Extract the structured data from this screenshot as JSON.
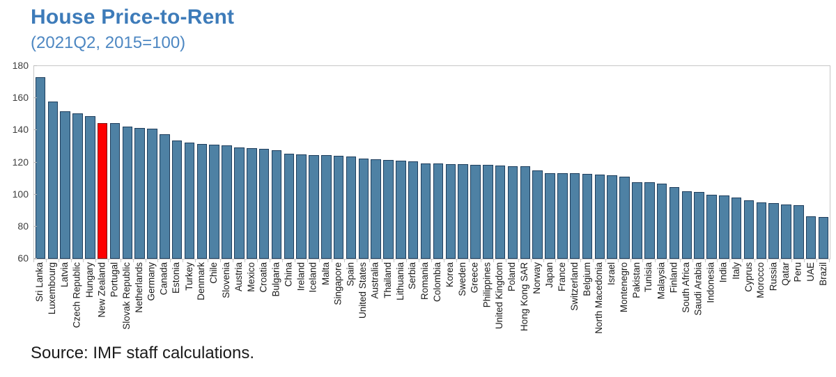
{
  "header": {
    "title": "House Price-to-Rent",
    "subtitle": "(2021Q2, 2015=100)"
  },
  "source": "Source: IMF staff calculations.",
  "chart_data": {
    "type": "bar",
    "title": "House Price-to-Rent",
    "subtitle": "(2021Q2, 2015=100)",
    "xlabel": "",
    "ylabel": "",
    "ylim": [
      60,
      180
    ],
    "yticks": [
      180,
      160,
      140,
      120,
      100,
      80,
      60
    ],
    "grid": false,
    "legend": "none",
    "bar_color": "#4e81a4",
    "bar_border_color": "#1e3d5c",
    "highlight": {
      "category": "New Zealand",
      "index": 5,
      "color": "#fe0000",
      "border_color": "#7e0f0f"
    },
    "categories": [
      "Sri Lanka",
      "Luxembourg",
      "Latvia",
      "Czech Republic",
      "Hungary",
      "New Zealand",
      "Portugal",
      "Slovak Republic",
      "Netherlands",
      "Germany",
      "Canada",
      "Estonia",
      "Turkey",
      "Denmark",
      "Chile",
      "Slovenia",
      "Austria",
      "Mexico",
      "Croatia",
      "Bulgaria",
      "China",
      "Ireland",
      "Iceland",
      "Malta",
      "Singapore",
      "Spain",
      "United States",
      "Australia",
      "Thailand",
      "Lithuania",
      "Serbia",
      "Romania",
      "Colombia",
      "Korea",
      "Sweden",
      "Greece",
      "Philippines",
      "United Kingdom",
      "Poland",
      "Hong Kong SAR",
      "Norway",
      "Japan",
      "France",
      "Switzerland",
      "Belgium",
      "North Macedonia",
      "Israel",
      "Montenegro",
      "Pakistan",
      "Tunisia",
      "Malaysia",
      "Finland",
      "South Africa",
      "Saudi Arabia",
      "Indonesia",
      "India",
      "Italy",
      "Cyprus",
      "Morocco",
      "Russia",
      "Qatar",
      "Peru",
      "UAE",
      "Brazil"
    ],
    "values": [
      173,
      158,
      152,
      150.5,
      149,
      144.5,
      144.5,
      142.5,
      141.5,
      141,
      137.5,
      133.5,
      132.5,
      131.5,
      131,
      130.5,
      129.5,
      129,
      128.5,
      127.5,
      125.5,
      125,
      124.5,
      124.5,
      124,
      123.5,
      122.5,
      122,
      121.5,
      121,
      120.5,
      119.5,
      119.5,
      119,
      119,
      118.5,
      118.5,
      118,
      117.5,
      117.5,
      115,
      113.5,
      113.5,
      113.5,
      113,
      112.5,
      112,
      111,
      107.5,
      107.5,
      107,
      104.5,
      102,
      101.5,
      100,
      99.5,
      98,
      96.5,
      95,
      94.5,
      94,
      93.5,
      86.5,
      86
    ]
  }
}
